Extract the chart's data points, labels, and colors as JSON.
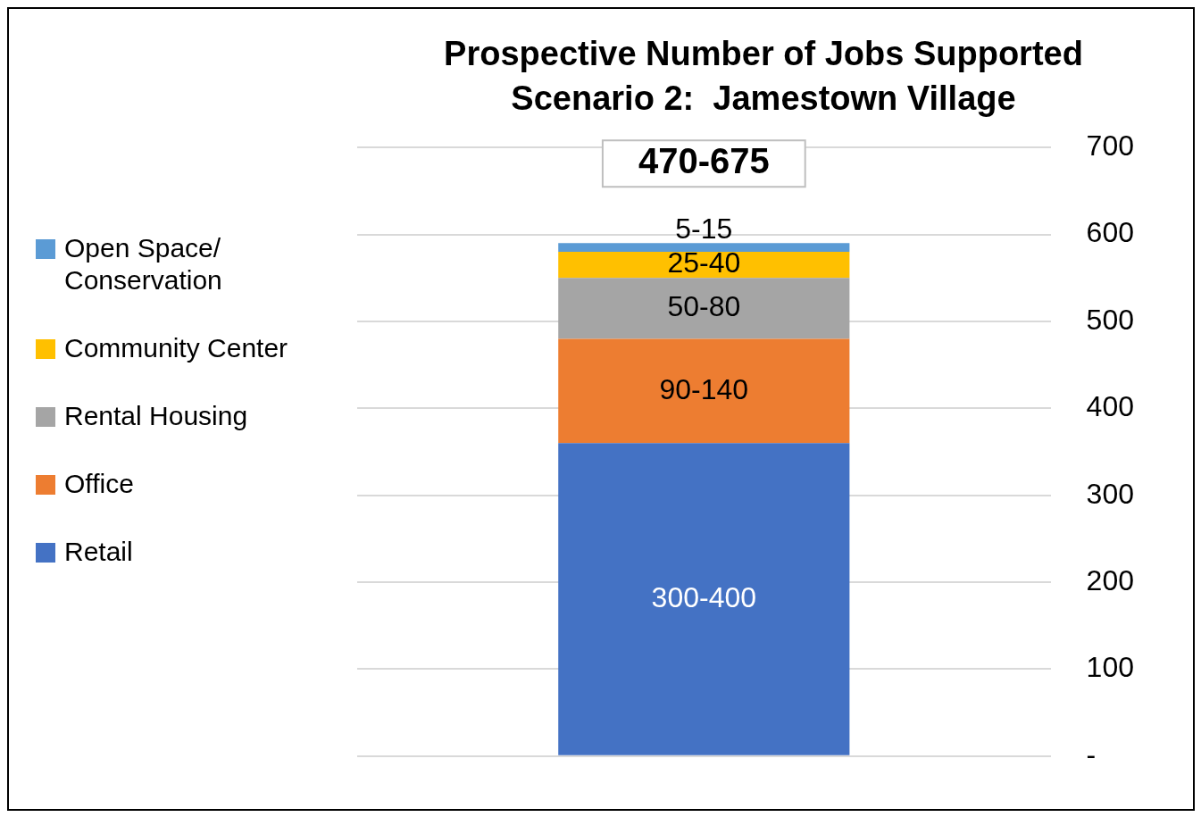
{
  "chart_data": {
    "type": "bar",
    "title": "Prospective Number of Jobs Supported",
    "subtitle": "Scenario 2:  Jamestown Village",
    "categories": [
      null
    ],
    "stacked": true,
    "series": [
      {
        "name": "Retail",
        "color": "#4472c4",
        "values": [
          360
        ],
        "value_labels": [
          "300-400"
        ]
      },
      {
        "name": "Office",
        "color": "#ed7d31",
        "values": [
          120
        ],
        "value_labels": [
          "90-140"
        ]
      },
      {
        "name": "Rental Housing",
        "color": "#a5a5a5",
        "values": [
          70
        ],
        "value_labels": [
          "50-80"
        ]
      },
      {
        "name": "Community Center",
        "color": "#ffc000",
        "values": [
          30
        ],
        "value_labels": [
          "25-40"
        ]
      },
      {
        "name": "Open Space/ Conservation",
        "color": "#5b9bd5",
        "values": [
          10
        ],
        "value_labels": [
          "5-15"
        ]
      }
    ],
    "totals": [
      "470-675"
    ],
    "ylim": [
      0,
      700
    ],
    "yticks": [
      {
        "value": 0,
        "label": "-"
      },
      100,
      200,
      300,
      400,
      500,
      600,
      700
    ],
    "grid": "y",
    "legend": "left"
  }
}
